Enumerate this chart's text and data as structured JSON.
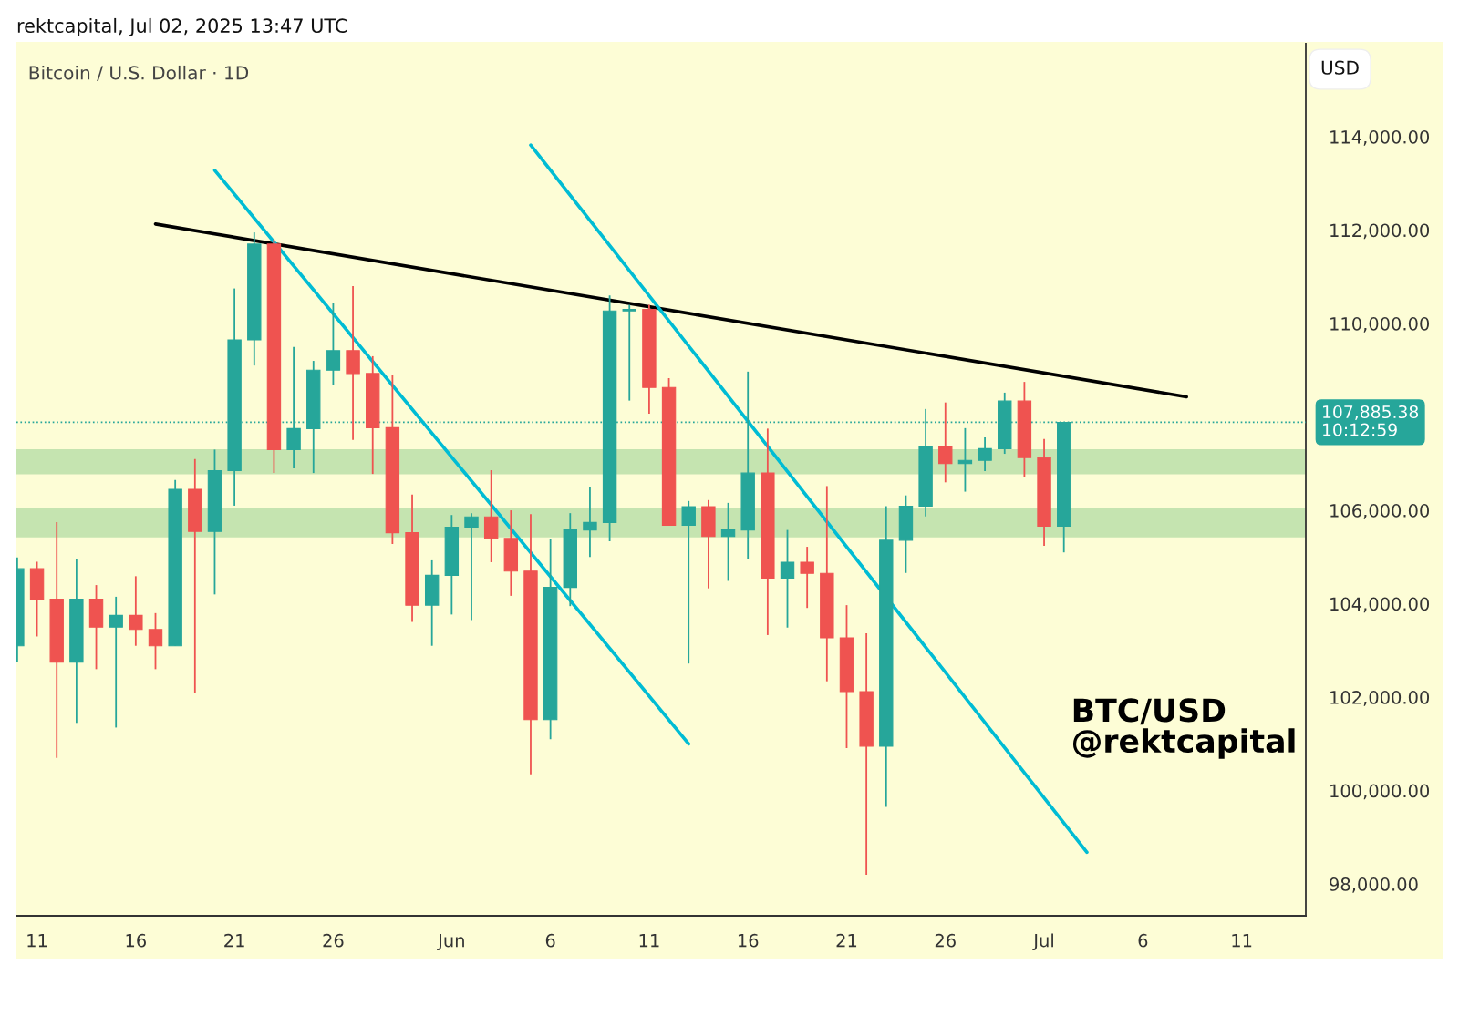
{
  "chart_data": {
    "type": "candlestick",
    "title": "Bitcoin / U.S. Dollar · 1D",
    "ylabel": "USD",
    "annotations": [
      "rektcapital, Jul 02, 2025 13:47 UTC",
      "BTC/USD\n@rektcapital"
    ],
    "x": [
      "2025-05-10",
      "2025-05-11",
      "2025-05-12",
      "2025-05-13",
      "2025-05-14",
      "2025-05-15",
      "2025-05-16",
      "2025-05-17",
      "2025-05-18",
      "2025-05-19",
      "2025-05-20",
      "2025-05-21",
      "2025-05-22",
      "2025-05-23",
      "2025-05-24",
      "2025-05-25",
      "2025-05-26",
      "2025-05-27",
      "2025-05-28",
      "2025-05-29",
      "2025-05-30",
      "2025-05-31",
      "2025-06-01",
      "2025-06-02",
      "2025-06-03",
      "2025-06-04",
      "2025-06-05",
      "2025-06-06",
      "2025-06-07",
      "2025-06-08",
      "2025-06-09",
      "2025-06-10",
      "2025-06-11",
      "2025-06-12",
      "2025-06-13",
      "2025-06-14",
      "2025-06-15",
      "2025-06-16",
      "2025-06-17",
      "2025-06-18",
      "2025-06-19",
      "2025-06-20",
      "2025-06-21",
      "2025-06-22",
      "2025-06-23",
      "2025-06-24",
      "2025-06-25",
      "2025-06-26",
      "2025-06-27",
      "2025-06-28",
      "2025-06-29",
      "2025-06-30",
      "2025-07-01",
      "2025-07-02"
    ],
    "ohlc": [
      [
        103100,
        104990,
        102750,
        104750
      ],
      [
        104750,
        104900,
        103300,
        104100
      ],
      [
        104100,
        105750,
        100700,
        102750
      ],
      [
        102750,
        104950,
        101450,
        104100
      ],
      [
        104100,
        104400,
        102600,
        103500
      ],
      [
        103500,
        104150,
        101350,
        103750
      ],
      [
        103750,
        104590,
        103100,
        103450
      ],
      [
        103450,
        103800,
        102600,
        103100
      ],
      [
        103100,
        106650,
        103100,
        106450
      ],
      [
        106450,
        107100,
        102100,
        105550
      ],
      [
        105550,
        107300,
        104200,
        106850
      ],
      [
        106850,
        110750,
        106100,
        109650
      ],
      [
        109650,
        111950,
        109100,
        111700
      ],
      [
        111700,
        111800,
        106800,
        107300
      ],
      [
        107300,
        109500,
        106900,
        107750
      ],
      [
        107750,
        109200,
        106800,
        109000
      ],
      [
        109000,
        110440,
        108690,
        109420
      ],
      [
        109420,
        110800,
        107510,
        108930
      ],
      [
        108930,
        109300,
        106780,
        107770
      ],
      [
        107770,
        108900,
        105280,
        105520
      ],
      [
        105520,
        106340,
        103610,
        103970
      ],
      [
        103970,
        104930,
        103100,
        104610
      ],
      [
        104610,
        105900,
        103770,
        105640
      ],
      [
        105640,
        105940,
        103650,
        105860
      ],
      [
        105860,
        106860,
        104890,
        105400
      ],
      [
        105400,
        106000,
        104170,
        104700
      ],
      [
        104700,
        105920,
        100350,
        101520
      ],
      [
        101520,
        105380,
        101100,
        104350
      ],
      [
        104350,
        105940,
        103950,
        105580
      ],
      [
        105580,
        106500,
        105000,
        105740
      ],
      [
        105740,
        110600,
        105340,
        110270
      ],
      [
        110270,
        110400,
        108350,
        110300
      ],
      [
        110300,
        110400,
        108070,
        108630
      ],
      [
        108630,
        108830,
        105680,
        105680
      ],
      [
        105680,
        106200,
        102720,
        106080
      ],
      [
        106080,
        106220,
        104330,
        105440
      ],
      [
        105440,
        106160,
        104490,
        105580
      ],
      [
        105580,
        108970,
        104960,
        106800
      ],
      [
        106800,
        107750,
        103330,
        104550
      ],
      [
        104550,
        105580,
        103490,
        104890
      ],
      [
        104890,
        105220,
        103910,
        104650
      ],
      [
        104650,
        106520,
        102340,
        103270
      ],
      [
        103270,
        103970,
        100910,
        102120
      ],
      [
        102120,
        103370,
        98200,
        100950
      ],
      [
        100950,
        106090,
        99650,
        105360
      ],
      [
        105360,
        106320,
        104660,
        106090
      ],
      [
        106090,
        108170,
        105870,
        107370
      ],
      [
        107370,
        108310,
        106600,
        107000
      ],
      [
        107000,
        107760,
        106400,
        107070
      ],
      [
        107070,
        107560,
        106840,
        107320
      ],
      [
        107320,
        108520,
        107210,
        108340
      ],
      [
        108340,
        108750,
        106710,
        107130
      ],
      [
        107130,
        107530,
        105240,
        105660
      ],
      [
        105660,
        107885.38,
        105100,
        107885.38
      ]
    ],
    "colors": [
      "#26a69a",
      "#ef5350",
      "#ef5350",
      "#26a69a",
      "#ef5350",
      "#26a69a",
      "#ef5350",
      "#ef5350",
      "#26a69a",
      "#ef5350",
      "#26a69a",
      "#26a69a",
      "#26a69a",
      "#ef5350",
      "#26a69a",
      "#26a69a",
      "#26a69a",
      "#ef5350",
      "#ef5350",
      "#ef5350",
      "#ef5350",
      "#26a69a",
      "#26a69a",
      "#26a69a",
      "#ef5350",
      "#ef5350",
      "#ef5350",
      "#26a69a",
      "#26a69a",
      "#26a69a",
      "#26a69a",
      "#26a69a",
      "#ef5350",
      "#ef5350",
      "#26a69a",
      "#ef5350",
      "#26a69a",
      "#26a69a",
      "#ef5350",
      "#26a69a",
      "#ef5350",
      "#ef5350",
      "#ef5350",
      "#ef5350",
      "#26a69a",
      "#26a69a",
      "#26a69a",
      "#ef5350",
      "#26a69a",
      "#26a69a",
      "#26a69a",
      "#ef5350",
      "#ef5350",
      "#26a69a"
    ],
    "series": [
      {
        "type": "line",
        "color": "#000000",
        "x": [
          "2025-05-17",
          "2025-07-08T05:00"
        ],
        "values": [
          112130,
          108430
        ]
      },
      {
        "type": "line",
        "color": "#00bcd4",
        "x": [
          "2025-05-20",
          "2025-06-13"
        ],
        "values": [
          113280,
          101000
        ]
      },
      {
        "type": "line",
        "color": "#00bcd4",
        "x": [
          "2025-06-05",
          "2025-07-03T04:00"
        ],
        "values": [
          113820,
          98680
        ]
      }
    ],
    "bands": [
      {
        "axis": "y",
        "from": 106770,
        "to": 107310,
        "color": "#c5e4b0"
      },
      {
        "axis": "y",
        "from": 105420,
        "to": 106060,
        "color": "#c5e4b0"
      }
    ],
    "ref_lines": [
      {
        "axis": "y",
        "value": 107885.38,
        "label": "107,885.38\n10:12:59",
        "color": "#26a69a",
        "line_style": "dotted"
      }
    ],
    "xlim": [
      "2025-05-09T23:00",
      "2025-07-14T06:00"
    ],
    "xticks": [
      {
        "value": "2025-05-11",
        "label": "11"
      },
      {
        "value": "2025-05-16",
        "label": "16"
      },
      {
        "value": "2025-05-21",
        "label": "21"
      },
      {
        "value": "2025-05-26",
        "label": "26"
      },
      {
        "value": "2025-06-01",
        "label": "Jun"
      },
      {
        "value": "2025-06-06",
        "label": "6"
      },
      {
        "value": "2025-06-11",
        "label": "11"
      },
      {
        "value": "2025-06-16",
        "label": "16"
      },
      {
        "value": "2025-06-21",
        "label": "21"
      },
      {
        "value": "2025-06-26",
        "label": "26"
      },
      {
        "value": "2025-07-01",
        "label": "Jul"
      },
      {
        "value": "2025-07-06",
        "label": "6"
      },
      {
        "value": "2025-07-11",
        "label": "11"
      }
    ],
    "ylim": [
      97320,
      115990
    ],
    "yticks": [
      {
        "value": 98000,
        "label": "98,000.00"
      },
      {
        "value": 100000,
        "label": "100,000.00"
      },
      {
        "value": 102000,
        "label": "102,000.00"
      },
      {
        "value": 104000,
        "label": "104,000.00"
      },
      {
        "value": 106000,
        "label": "106,000.00"
      },
      {
        "value": 110000,
        "label": "110,000.00"
      },
      {
        "value": 112000,
        "label": "112,000.00"
      },
      {
        "value": 114000,
        "label": "114,000.00"
      }
    ],
    "grid": false,
    "legend": false
  }
}
